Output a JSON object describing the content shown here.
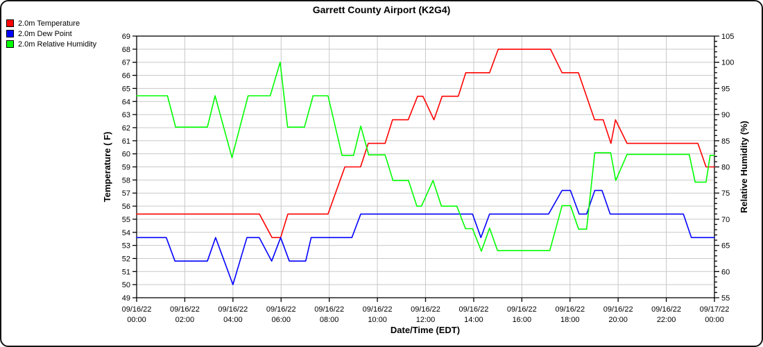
{
  "title": "Garrett County Airport (K2G4)",
  "chart_data": {
    "type": "line",
    "title": "Garrett County Airport (K2G4)",
    "xlabel": "Date/Time (EDT)",
    "ylabel_left": "Temperature ( F)",
    "ylabel_right": "Relative Humidity (%)",
    "xlim_hours": [
      0,
      24
    ],
    "ylim_left": [
      49,
      69
    ],
    "ylim_right": [
      55,
      105
    ],
    "left_tick_step": 1,
    "right_major_tick_step": 5,
    "right_minor_tick_step": 1,
    "grid": true,
    "legend_position": "top-left",
    "colors": {
      "grid": "#c8c8c8",
      "axis": "#000000",
      "background": "#ffffff"
    },
    "x_ticks": [
      {
        "hour": 0,
        "date": "09/16/22",
        "time": "00:00"
      },
      {
        "hour": 2,
        "date": "09/16/22",
        "time": "02:00"
      },
      {
        "hour": 4,
        "date": "09/16/22",
        "time": "04:00"
      },
      {
        "hour": 6,
        "date": "09/16/22",
        "time": "06:00"
      },
      {
        "hour": 8,
        "date": "09/16/22",
        "time": "08:00"
      },
      {
        "hour": 10,
        "date": "09/16/22",
        "time": "10:00"
      },
      {
        "hour": 12,
        "date": "09/16/22",
        "time": "12:00"
      },
      {
        "hour": 14,
        "date": "09/16/22",
        "time": "14:00"
      },
      {
        "hour": 16,
        "date": "09/16/22",
        "time": "16:00"
      },
      {
        "hour": 18,
        "date": "09/16/22",
        "time": "18:00"
      },
      {
        "hour": 20,
        "date": "09/16/22",
        "time": "20:00"
      },
      {
        "hour": 22,
        "date": "09/16/22",
        "time": "22:00"
      },
      {
        "hour": 24,
        "date": "09/17/22",
        "time": "00:00"
      }
    ],
    "series": [
      {
        "name": "2.0m Temperature",
        "axis": "left",
        "units": "F",
        "color": "#ff0000",
        "points": [
          [
            0,
            55.4
          ],
          [
            5.1,
            55.4
          ],
          [
            5.62,
            53.6
          ],
          [
            5.98,
            53.6
          ],
          [
            6.28,
            55.4
          ],
          [
            7.95,
            55.4
          ],
          [
            8.65,
            59
          ],
          [
            9.3,
            59
          ],
          [
            9.62,
            60.8
          ],
          [
            10.32,
            60.8
          ],
          [
            10.63,
            62.6
          ],
          [
            11.28,
            62.6
          ],
          [
            11.67,
            64.4
          ],
          [
            11.89,
            64.4
          ],
          [
            12.35,
            62.6
          ],
          [
            12.69,
            64.4
          ],
          [
            13.36,
            64.4
          ],
          [
            13.67,
            66.2
          ],
          [
            14.66,
            66.2
          ],
          [
            15.02,
            68
          ],
          [
            17.19,
            68
          ],
          [
            17.67,
            66.2
          ],
          [
            18.35,
            66.2
          ],
          [
            19.02,
            62.6
          ],
          [
            19.38,
            62.6
          ],
          [
            19.7,
            60.8
          ],
          [
            19.89,
            62.6
          ],
          [
            20.37,
            60.8
          ],
          [
            23.31,
            60.8
          ],
          [
            23.65,
            59
          ],
          [
            24,
            59
          ]
        ]
      },
      {
        "name": "2.0m Dew Point",
        "axis": "left",
        "units": "F",
        "color": "#0000ff",
        "points": [
          [
            0,
            53.6
          ],
          [
            1.23,
            53.6
          ],
          [
            1.59,
            51.8
          ],
          [
            2.94,
            51.8
          ],
          [
            3.28,
            53.6
          ],
          [
            4,
            50
          ],
          [
            4.58,
            53.6
          ],
          [
            5.09,
            53.6
          ],
          [
            5.61,
            51.8
          ],
          [
            5.98,
            53.6
          ],
          [
            6.34,
            51.8
          ],
          [
            7.02,
            51.8
          ],
          [
            7.25,
            53.6
          ],
          [
            8.94,
            53.6
          ],
          [
            9.31,
            55.4
          ],
          [
            13.95,
            55.4
          ],
          [
            14.3,
            53.6
          ],
          [
            14.66,
            55.4
          ],
          [
            17.11,
            55.4
          ],
          [
            17.67,
            57.2
          ],
          [
            18.02,
            57.2
          ],
          [
            18.38,
            55.4
          ],
          [
            18.69,
            55.4
          ],
          [
            19.03,
            57.2
          ],
          [
            19.33,
            57.2
          ],
          [
            19.67,
            55.4
          ],
          [
            22.71,
            55.4
          ],
          [
            23.04,
            53.6
          ],
          [
            24,
            53.6
          ]
        ]
      },
      {
        "name": "2.0m Relative Humidity",
        "axis": "right",
        "units": "%",
        "color": "#00ff00",
        "points": [
          [
            0,
            93.6
          ],
          [
            1.28,
            93.6
          ],
          [
            1.62,
            87.6
          ],
          [
            2.94,
            87.6
          ],
          [
            3.26,
            93.6
          ],
          [
            3.96,
            81.8
          ],
          [
            4.63,
            93.6
          ],
          [
            5.55,
            93.6
          ],
          [
            5.96,
            100
          ],
          [
            6.27,
            87.6
          ],
          [
            6.97,
            87.6
          ],
          [
            7.33,
            93.6
          ],
          [
            7.95,
            93.6
          ],
          [
            8.53,
            82.2
          ],
          [
            9.01,
            82.2
          ],
          [
            9.31,
            87.8
          ],
          [
            9.64,
            82.3
          ],
          [
            10.32,
            82.3
          ],
          [
            10.65,
            77.4
          ],
          [
            11.29,
            77.4
          ],
          [
            11.64,
            72.5
          ],
          [
            11.83,
            72.5
          ],
          [
            12.31,
            77.4
          ],
          [
            12.66,
            72.5
          ],
          [
            13.3,
            72.5
          ],
          [
            13.66,
            68.2
          ],
          [
            13.95,
            68.2
          ],
          [
            14.32,
            63.9
          ],
          [
            14.66,
            68.3
          ],
          [
            14.99,
            64
          ],
          [
            17.16,
            64
          ],
          [
            17.67,
            72.6
          ],
          [
            18.02,
            72.6
          ],
          [
            18.36,
            68.1
          ],
          [
            18.69,
            68.1
          ],
          [
            19.03,
            82.7
          ],
          [
            19.69,
            82.7
          ],
          [
            19.9,
            77.4
          ],
          [
            20.37,
            82.4
          ],
          [
            22.95,
            82.4
          ],
          [
            23.2,
            77.1
          ],
          [
            23.65,
            77.1
          ],
          [
            23.82,
            82.2
          ],
          [
            24,
            82.2
          ]
        ]
      }
    ]
  }
}
